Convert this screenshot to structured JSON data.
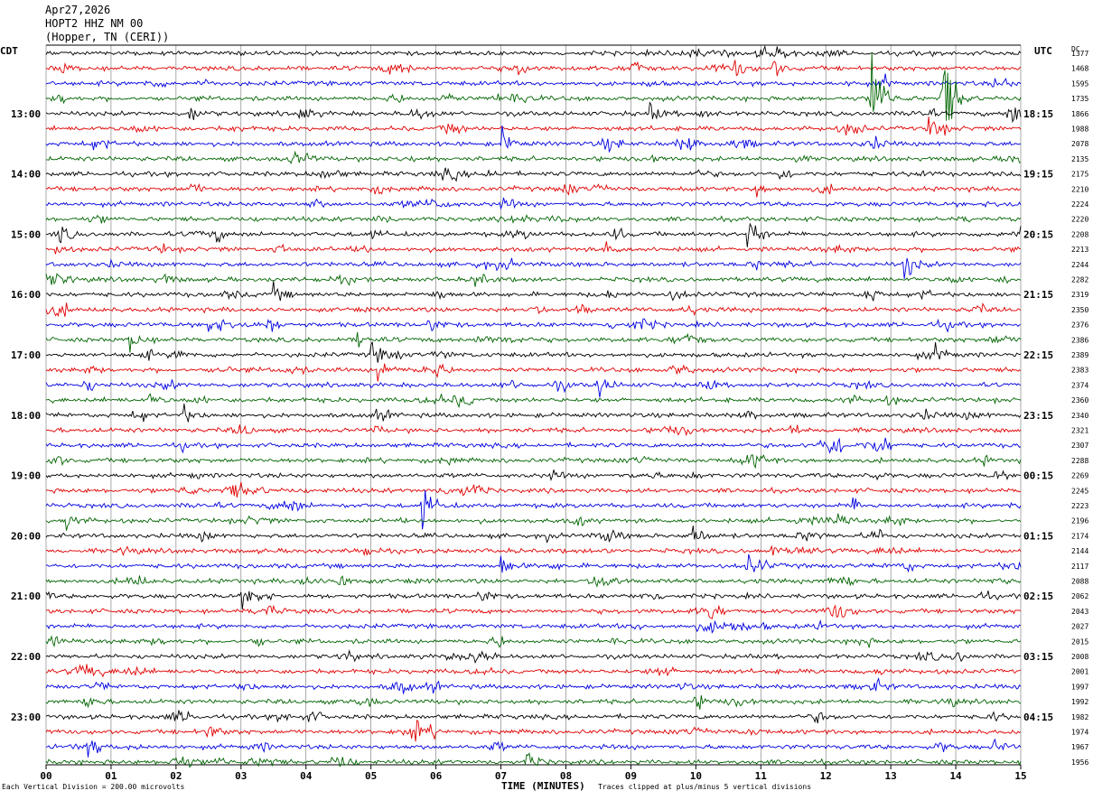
{
  "header": {
    "date": "Apr27,2026",
    "station": "HOPT2 HHZ NM 00",
    "location": "(Hopper, TN (CERI))"
  },
  "left_tz": "CDT",
  "right_tz": "UTC",
  "dc_header": "DC",
  "footer": {
    "scale": "Each Vertical Division =  200.00 microvolts",
    "xlabel": "TIME (MINUTES)",
    "clip": "Traces clipped at plus/minus 5 vertical divisions"
  },
  "colors": {
    "cycle": [
      "#000000",
      "#e00000",
      "#0000e0",
      "#006400"
    ],
    "grid": "#000000"
  },
  "chart_data": {
    "type": "line",
    "plot": "helicorder",
    "x_range": [
      0,
      15
    ],
    "x_ticks": [
      "00",
      "01",
      "02",
      "03",
      "04",
      "05",
      "06",
      "07",
      "08",
      "09",
      "10",
      "11",
      "12",
      "13",
      "14",
      "15"
    ],
    "row_minutes": 15,
    "rows": 48,
    "grid": true,
    "left_labels": [
      "13:00",
      "14:00",
      "15:00",
      "16:00",
      "17:00",
      "18:00",
      "19:00",
      "20:00",
      "21:00",
      "22:00",
      "23:00"
    ],
    "right_labels": [
      "18:15",
      "19:15",
      "20:15",
      "21:15",
      "22:15",
      "23:15",
      "00:15",
      "01:15",
      "02:15",
      "03:15",
      "04:15"
    ],
    "dc_values": [
      1377,
      1468,
      1595,
      1735,
      1866,
      1988,
      2078,
      2135,
      2175,
      2210,
      2224,
      2220,
      2208,
      2213,
      2244,
      2282,
      2319,
      2350,
      2376,
      2386,
      2389,
      2383,
      2374,
      2360,
      2340,
      2321,
      2307,
      2288,
      2269,
      2245,
      2223,
      2196,
      2174,
      2144,
      2117,
      2088,
      2062,
      2043,
      2027,
      2015,
      2008,
      2001,
      1997,
      1992,
      1982,
      1974,
      1967,
      1956
    ],
    "events": [
      {
        "row": 1,
        "minute": 9.0,
        "amp": 14
      },
      {
        "row": 1,
        "minute": 10.6,
        "amp": 12
      },
      {
        "row": 2,
        "minute": 2.3,
        "amp": 6
      },
      {
        "row": 1,
        "minute": 11.2,
        "amp": 10
      },
      {
        "row": 3,
        "minute": 12.7,
        "amp": 75
      },
      {
        "row": 3,
        "minute": 13.8,
        "amp": 70
      },
      {
        "row": 4,
        "minute": 2.2,
        "amp": 10
      },
      {
        "row": 4,
        "minute": 3.9,
        "amp": 10
      },
      {
        "row": 4,
        "minute": 9.3,
        "amp": 10
      },
      {
        "row": 5,
        "minute": 13.6,
        "amp": 14
      },
      {
        "row": 6,
        "minute": 7.0,
        "amp": 16
      },
      {
        "row": 8,
        "minute": 11.3,
        "amp": 7
      },
      {
        "row": 9,
        "minute": 10.9,
        "amp": 8
      },
      {
        "row": 12,
        "minute": 0.2,
        "amp": 12
      },
      {
        "row": 12,
        "minute": 10.8,
        "amp": 22
      },
      {
        "row": 12,
        "minute": 2.6,
        "amp": 7
      },
      {
        "row": 13,
        "minute": 8.6,
        "amp": 8
      },
      {
        "row": 14,
        "minute": 13.2,
        "amp": 18
      },
      {
        "row": 15,
        "minute": 6.6,
        "amp": 12
      },
      {
        "row": 16,
        "minute": 12.6,
        "amp": 14
      },
      {
        "row": 16,
        "minute": 3.5,
        "amp": 9
      },
      {
        "row": 18,
        "minute": 2.5,
        "amp": 12
      },
      {
        "row": 18,
        "minute": 3.4,
        "amp": 10
      },
      {
        "row": 18,
        "minute": 5.9,
        "amp": 10
      },
      {
        "row": 19,
        "minute": 1.3,
        "amp": 14
      },
      {
        "row": 19,
        "minute": 4.8,
        "amp": 10
      },
      {
        "row": 20,
        "minute": 5.0,
        "amp": 14
      },
      {
        "row": 20,
        "minute": 13.7,
        "amp": 8
      },
      {
        "row": 21,
        "minute": 5.1,
        "amp": 18
      },
      {
        "row": 22,
        "minute": 8.5,
        "amp": 14
      },
      {
        "row": 22,
        "minute": 0.6,
        "amp": 8
      },
      {
        "row": 23,
        "minute": 1.6,
        "amp": 7
      },
      {
        "row": 24,
        "minute": 2.1,
        "amp": 10
      },
      {
        "row": 28,
        "minute": 12.6,
        "amp": 8
      },
      {
        "row": 30,
        "minute": 5.8,
        "amp": 24
      },
      {
        "row": 31,
        "minute": 0.3,
        "amp": 14
      },
      {
        "row": 32,
        "minute": 9.9,
        "amp": 20
      },
      {
        "row": 33,
        "minute": 4.8,
        "amp": 8
      },
      {
        "row": 34,
        "minute": 7.0,
        "amp": 12
      },
      {
        "row": 34,
        "minute": 10.8,
        "amp": 8
      },
      {
        "row": 35,
        "minute": 4.5,
        "amp": 10
      },
      {
        "row": 36,
        "minute": 3.0,
        "amp": 10
      },
      {
        "row": 39,
        "minute": 0.1,
        "amp": 7
      },
      {
        "row": 42,
        "minute": 3.0,
        "amp": 6
      },
      {
        "row": 45,
        "minute": 10.8,
        "amp": 6
      },
      {
        "row": 46,
        "minute": 14.6,
        "amp": 8
      },
      {
        "row": 47,
        "minute": 7.4,
        "amp": 12
      },
      {
        "row": 47,
        "minute": 1.9,
        "amp": 8
      }
    ]
  }
}
